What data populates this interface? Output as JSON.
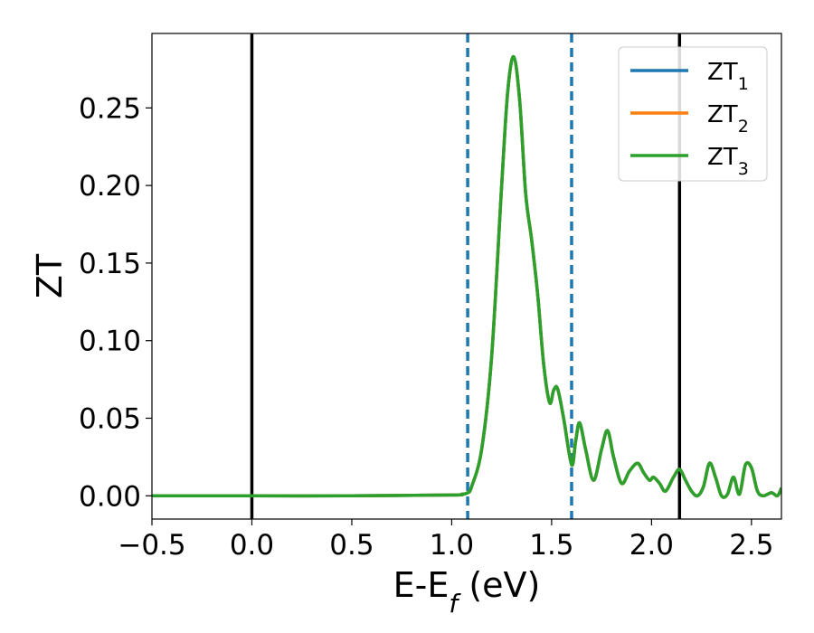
{
  "chart_data": {
    "type": "line",
    "xlabel": "E-E",
    "xlabel_sub": "f",
    "xlabel_unit": " (eV)",
    "ylabel": "ZT",
    "xlim": [
      -0.5,
      2.65
    ],
    "ylim": [
      -0.015,
      0.298
    ],
    "x_ticks": [
      -0.5,
      0.0,
      0.5,
      1.0,
      1.5,
      2.0,
      2.5
    ],
    "x_tick_labels": [
      "−0.5",
      "0.0",
      "0.5",
      "1.0",
      "1.5",
      "2.0",
      "2.5"
    ],
    "y_ticks": [
      0.0,
      0.05,
      0.1,
      0.15,
      0.2,
      0.25
    ],
    "y_tick_labels": [
      "0.00",
      "0.05",
      "0.10",
      "0.15",
      "0.20",
      "0.25"
    ],
    "grid": false,
    "legend_position": "top-right",
    "series": [
      {
        "name": "ZT",
        "name_sub": "1",
        "color": "#1f77b4",
        "x": [
          -0.5,
          0.0,
          0.5,
          1.0,
          1.05,
          1.08,
          1.1,
          1.15,
          1.2,
          1.25,
          1.28,
          1.31,
          1.34,
          1.37,
          1.4,
          1.43,
          1.46,
          1.49,
          1.51,
          1.53,
          1.56,
          1.6,
          1.62,
          1.64,
          1.67,
          1.71,
          1.75,
          1.78,
          1.81,
          1.85,
          1.89,
          1.93,
          1.96,
          1.99,
          2.01,
          2.04,
          2.07,
          2.11,
          2.14,
          2.17,
          2.2,
          2.23,
          2.26,
          2.29,
          2.32,
          2.35,
          2.38,
          2.41,
          2.44,
          2.47,
          2.5,
          2.53,
          2.56,
          2.6,
          2.63,
          2.65
        ],
        "y": [
          0.0,
          0.0,
          0.0,
          0.0005,
          0.001,
          0.002,
          0.006,
          0.03,
          0.09,
          0.2,
          0.26,
          0.283,
          0.255,
          0.195,
          0.165,
          0.13,
          0.085,
          0.06,
          0.068,
          0.069,
          0.05,
          0.02,
          0.035,
          0.047,
          0.03,
          0.01,
          0.03,
          0.042,
          0.025,
          0.008,
          0.016,
          0.021,
          0.015,
          0.01,
          0.012,
          0.008,
          0.003,
          0.012,
          0.017,
          0.01,
          0.003,
          0.0,
          0.006,
          0.021,
          0.012,
          0.0,
          0.001,
          0.012,
          0.001,
          0.02,
          0.018,
          0.003,
          0.0,
          0.002,
          0.0,
          0.005
        ]
      },
      {
        "name": "ZT",
        "name_sub": "2",
        "color": "#ff7f0e",
        "x": [
          -0.5,
          0.0,
          0.5,
          1.0,
          1.05,
          1.08,
          1.1,
          1.15,
          1.2,
          1.25,
          1.28,
          1.31,
          1.34,
          1.37,
          1.4,
          1.43,
          1.46,
          1.49,
          1.51,
          1.53,
          1.56,
          1.6,
          1.62,
          1.64,
          1.67,
          1.71,
          1.75,
          1.78,
          1.81,
          1.85,
          1.89,
          1.93,
          1.96,
          1.99,
          2.01,
          2.04,
          2.07,
          2.11,
          2.14,
          2.17,
          2.2,
          2.23,
          2.26,
          2.29,
          2.32,
          2.35,
          2.38,
          2.41,
          2.44,
          2.47,
          2.5,
          2.53,
          2.56,
          2.6,
          2.63,
          2.65
        ],
        "y": [
          0.0,
          0.0,
          0.0,
          0.0005,
          0.001,
          0.002,
          0.006,
          0.03,
          0.09,
          0.2,
          0.26,
          0.283,
          0.255,
          0.195,
          0.165,
          0.13,
          0.085,
          0.06,
          0.068,
          0.069,
          0.05,
          0.02,
          0.035,
          0.047,
          0.03,
          0.01,
          0.03,
          0.042,
          0.025,
          0.008,
          0.016,
          0.021,
          0.015,
          0.01,
          0.012,
          0.008,
          0.003,
          0.012,
          0.017,
          0.01,
          0.003,
          0.0,
          0.006,
          0.021,
          0.012,
          0.0,
          0.001,
          0.012,
          0.001,
          0.02,
          0.018,
          0.003,
          0.0,
          0.002,
          0.0,
          0.005
        ]
      },
      {
        "name": "ZT",
        "name_sub": "3",
        "color": "#2ca02c",
        "x": [
          -0.5,
          0.0,
          0.5,
          1.0,
          1.05,
          1.08,
          1.1,
          1.15,
          1.2,
          1.25,
          1.28,
          1.31,
          1.34,
          1.37,
          1.4,
          1.43,
          1.46,
          1.49,
          1.51,
          1.53,
          1.56,
          1.6,
          1.62,
          1.64,
          1.67,
          1.71,
          1.75,
          1.78,
          1.81,
          1.85,
          1.89,
          1.93,
          1.96,
          1.99,
          2.01,
          2.04,
          2.07,
          2.11,
          2.14,
          2.17,
          2.2,
          2.23,
          2.26,
          2.29,
          2.32,
          2.35,
          2.38,
          2.41,
          2.44,
          2.47,
          2.5,
          2.53,
          2.56,
          2.6,
          2.63,
          2.65
        ],
        "y": [
          0.0,
          0.0,
          0.0,
          0.0005,
          0.001,
          0.002,
          0.006,
          0.03,
          0.09,
          0.2,
          0.26,
          0.283,
          0.255,
          0.195,
          0.165,
          0.13,
          0.085,
          0.06,
          0.068,
          0.069,
          0.05,
          0.02,
          0.035,
          0.047,
          0.03,
          0.01,
          0.03,
          0.042,
          0.025,
          0.008,
          0.016,
          0.021,
          0.015,
          0.01,
          0.012,
          0.008,
          0.003,
          0.012,
          0.017,
          0.01,
          0.003,
          0.0,
          0.006,
          0.021,
          0.012,
          0.0,
          0.001,
          0.012,
          0.001,
          0.02,
          0.018,
          0.003,
          0.0,
          0.002,
          0.0,
          0.005
        ]
      }
    ],
    "vlines": [
      {
        "x": 0.0,
        "style": "solid",
        "color": "#000000"
      },
      {
        "x": 2.14,
        "style": "solid",
        "color": "#000000"
      },
      {
        "x": 1.08,
        "style": "dashed",
        "color": "#1f77b4"
      },
      {
        "x": 1.6,
        "style": "dashed",
        "color": "#1f77b4"
      }
    ]
  }
}
